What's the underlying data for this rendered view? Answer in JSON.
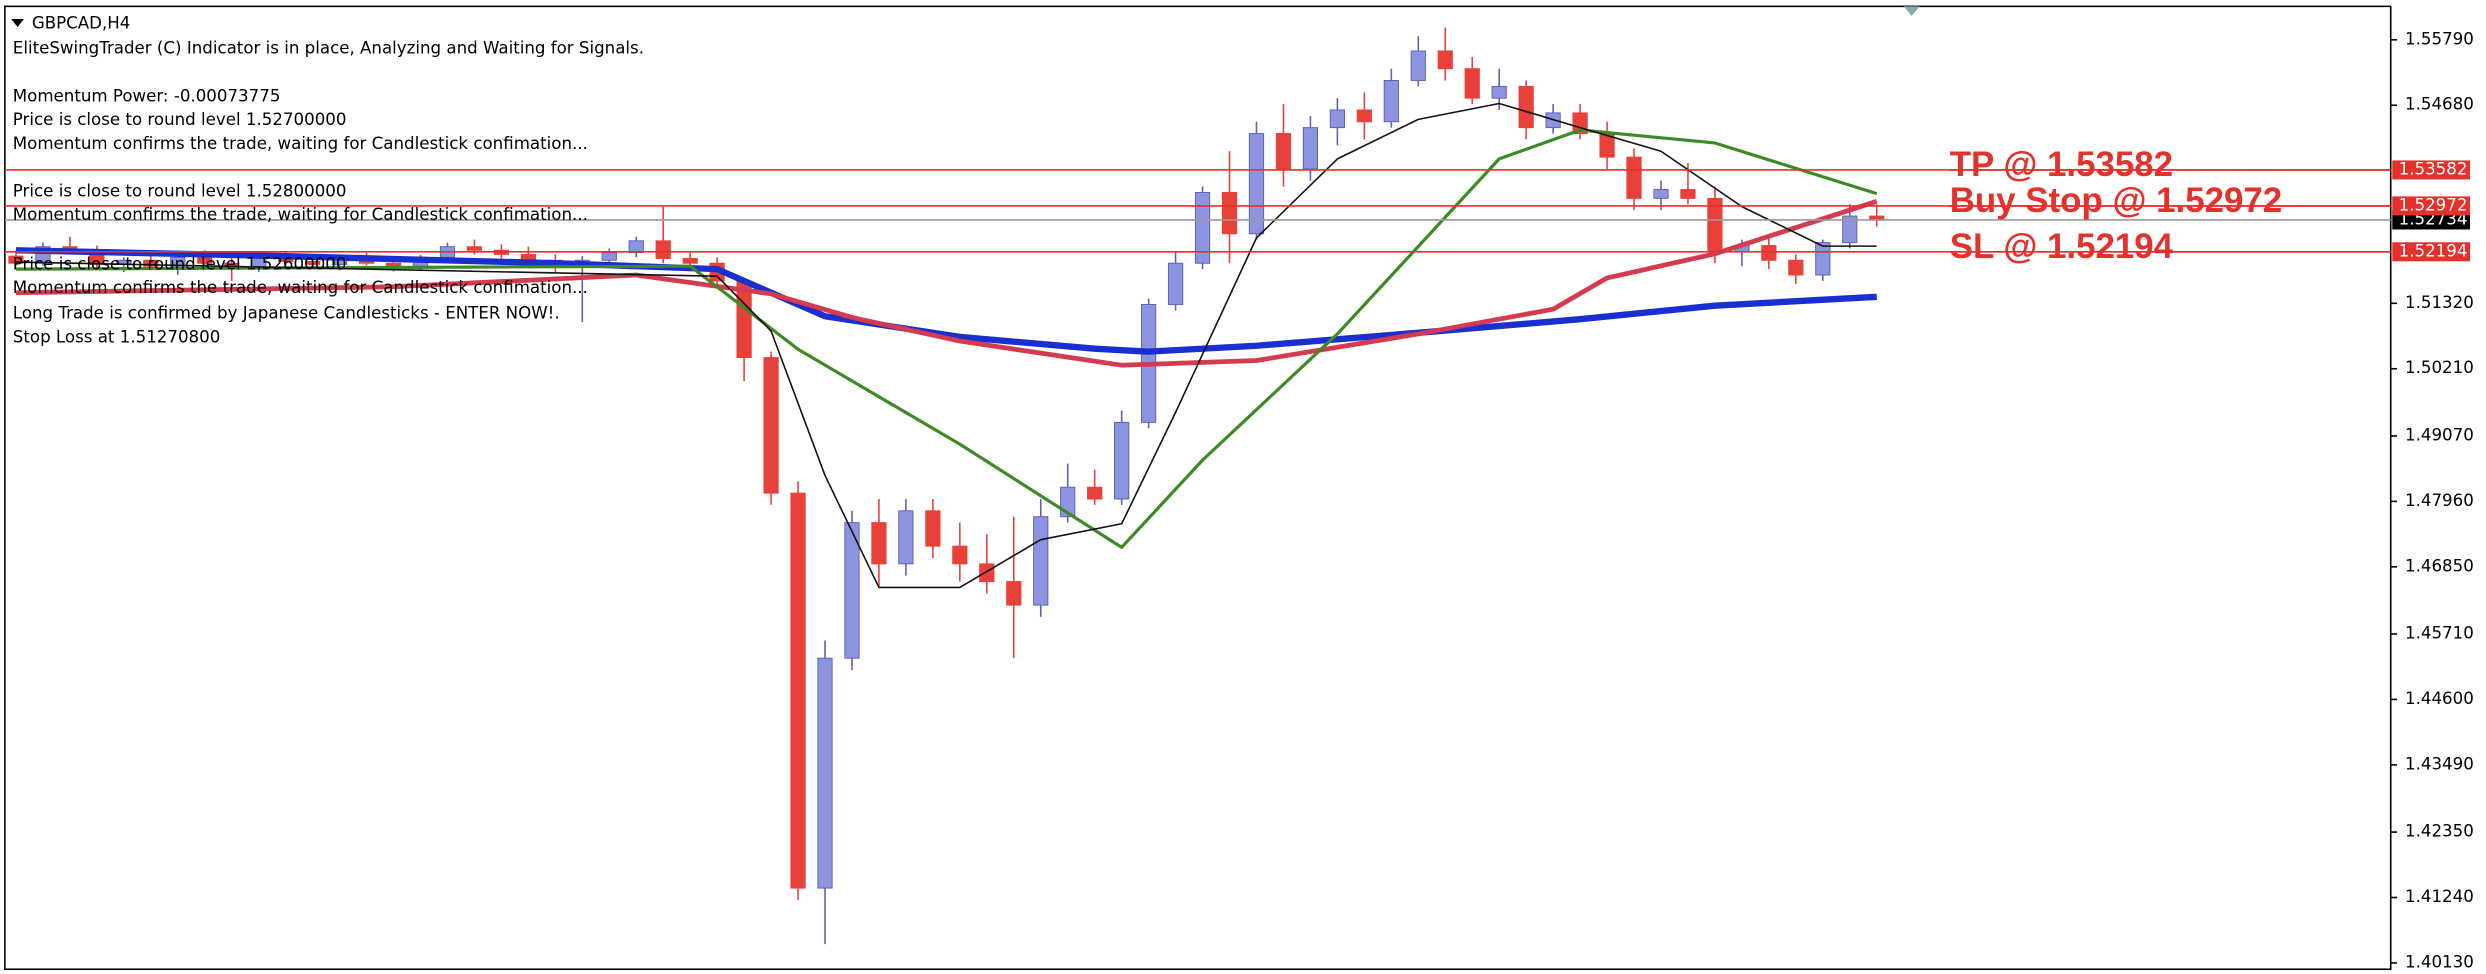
{
  "overlay": {
    "symbol": "GBPCAD,H4",
    "lines": [
      "EliteSwingTrader (C) Indicator is in place, Analyzing and Waiting for Signals.",
      "Momentum Power: -0.00073775",
      "Price is close to round level 1.52700000",
      "Momentum confirms the trade, waiting for Candlestick confimation...",
      "Price is close to round level 1.52800000",
      "Momentum confirms the trade, waiting for Candlestick confimation...",
      "Price is close to round level 1.52600000",
      "Momentum confirms the trade, waiting for Candlestick confimation...",
      "Long Trade is confirmed by Japanese Candlesticks - ENTER NOW!.",
      "Stop Loss at 1.51270800"
    ]
  },
  "chart_data": {
    "type": "candlestick",
    "bull_color": "#8c93df",
    "bear_color": "#e8413a",
    "ylim": [
      1.4005,
      1.5625
    ],
    "yticks": [
      {
        "value": 1.5579,
        "label": "1.55790"
      },
      {
        "value": 1.5468,
        "label": "1.54680"
      },
      {
        "value": 1.5132,
        "label": "1.51320"
      },
      {
        "value": 1.5021,
        "label": "1.50210"
      },
      {
        "value": 1.4907,
        "label": "1.49070"
      },
      {
        "value": 1.4796,
        "label": "1.47960"
      },
      {
        "value": 1.4685,
        "label": "1.46850"
      },
      {
        "value": 1.4571,
        "label": "1.45710"
      },
      {
        "value": 1.446,
        "label": "1.44600"
      },
      {
        "value": 1.4349,
        "label": "1.43490"
      },
      {
        "value": 1.4235,
        "label": "1.42350"
      },
      {
        "value": 1.4124,
        "label": "1.41240"
      },
      {
        "value": 1.4013,
        "label": "1.40130"
      }
    ],
    "candles": [
      [
        1.5212,
        1.5222,
        1.5195,
        1.52
      ],
      [
        1.52,
        1.5235,
        1.5195,
        1.5228
      ],
      [
        1.5228,
        1.5245,
        1.5215,
        1.522
      ],
      [
        1.522,
        1.523,
        1.519,
        1.5198
      ],
      [
        1.5198,
        1.521,
        1.5185,
        1.5205
      ],
      [
        1.5205,
        1.5218,
        1.519,
        1.5195
      ],
      [
        1.5195,
        1.5215,
        1.518,
        1.521
      ],
      [
        1.521,
        1.5222,
        1.5196,
        1.52
      ],
      [
        1.52,
        1.5212,
        1.517,
        1.519
      ],
      [
        1.519,
        1.5215,
        1.5185,
        1.5208
      ],
      [
        1.5208,
        1.522,
        1.5195,
        1.5203
      ],
      [
        1.5203,
        1.5214,
        1.5192,
        1.5198
      ],
      [
        1.5198,
        1.5212,
        1.5188,
        1.5206
      ],
      [
        1.5206,
        1.5218,
        1.5196,
        1.52
      ],
      [
        1.52,
        1.521,
        1.5186,
        1.5192
      ],
      [
        1.5192,
        1.5214,
        1.5188,
        1.521
      ],
      [
        1.521,
        1.5235,
        1.5205,
        1.5228
      ],
      [
        1.5228,
        1.524,
        1.5215,
        1.5222
      ],
      [
        1.5222,
        1.5232,
        1.5208,
        1.5215
      ],
      [
        1.5215,
        1.5228,
        1.52,
        1.5205
      ],
      [
        1.5205,
        1.5215,
        1.5185,
        1.5195
      ],
      [
        1.5195,
        1.5212,
        1.51,
        1.5205
      ],
      [
        1.5205,
        1.5225,
        1.5198,
        1.5218
      ],
      [
        1.5218,
        1.5245,
        1.521,
        1.5238
      ],
      [
        1.5238,
        1.5296,
        1.52,
        1.5208
      ],
      [
        1.5208,
        1.5218,
        1.5195,
        1.52
      ],
      [
        1.52,
        1.521,
        1.516,
        1.517
      ],
      [
        1.517,
        1.5175,
        1.5,
        1.504
      ],
      [
        1.504,
        1.505,
        1.479,
        1.481
      ],
      [
        1.481,
        1.483,
        1.412,
        1.414
      ],
      [
        1.414,
        1.456,
        1.4045,
        1.453
      ],
      [
        1.453,
        1.478,
        1.451,
        1.476
      ],
      [
        1.476,
        1.48,
        1.465,
        1.469
      ],
      [
        1.469,
        1.48,
        1.467,
        1.478
      ],
      [
        1.478,
        1.48,
        1.47,
        1.472
      ],
      [
        1.472,
        1.476,
        1.466,
        1.469
      ],
      [
        1.469,
        1.474,
        1.464,
        1.466
      ],
      [
        1.466,
        1.477,
        1.453,
        1.462
      ],
      [
        1.462,
        1.48,
        1.46,
        1.477
      ],
      [
        1.477,
        1.486,
        1.476,
        1.482
      ],
      [
        1.482,
        1.485,
        1.479,
        1.48
      ],
      [
        1.48,
        1.495,
        1.479,
        1.493
      ],
      [
        1.493,
        1.514,
        1.492,
        1.513
      ],
      [
        1.513,
        1.522,
        1.512,
        1.52
      ],
      [
        1.52,
        1.533,
        1.519,
        1.532
      ],
      [
        1.532,
        1.539,
        1.52,
        1.525
      ],
      [
        1.525,
        1.544,
        1.524,
        1.542
      ],
      [
        1.542,
        1.547,
        1.533,
        1.536
      ],
      [
        1.536,
        1.545,
        1.534,
        1.543
      ],
      [
        1.543,
        1.548,
        1.54,
        1.546
      ],
      [
        1.546,
        1.549,
        1.541,
        1.544
      ],
      [
        1.544,
        1.553,
        1.543,
        1.551
      ],
      [
        1.551,
        1.5585,
        1.55,
        1.556
      ],
      [
        1.556,
        1.56,
        1.551,
        1.553
      ],
      [
        1.553,
        1.555,
        1.547,
        1.548
      ],
      [
        1.548,
        1.553,
        1.546,
        1.55
      ],
      [
        1.55,
        1.551,
        1.541,
        1.543
      ],
      [
        1.543,
        1.547,
        1.542,
        1.5455
      ],
      [
        1.5455,
        1.547,
        1.541,
        1.542
      ],
      [
        1.542,
        1.544,
        1.536,
        1.538
      ],
      [
        1.538,
        1.5395,
        1.529,
        1.531
      ],
      [
        1.531,
        1.534,
        1.529,
        1.5325
      ],
      [
        1.5325,
        1.537,
        1.53,
        1.531
      ],
      [
        1.531,
        1.533,
        1.52,
        1.522
      ],
      [
        1.522,
        1.524,
        1.5195,
        1.523
      ],
      [
        1.523,
        1.5245,
        1.519,
        1.5205
      ],
      [
        1.5205,
        1.5215,
        1.5165,
        1.518
      ],
      [
        1.518,
        1.524,
        1.517,
        1.5235
      ],
      [
        1.5235,
        1.53,
        1.5225,
        1.528
      ],
      [
        1.528,
        1.53,
        1.5262,
        1.5273
      ]
    ],
    "series": [
      {
        "color": "#1a2fd0",
        "x": [
          0,
          10,
          20,
          26,
          30,
          35,
          40,
          42,
          46,
          52,
          58,
          63,
          69
        ],
        "values": [
          1.5222,
          1.5212,
          1.52,
          1.519,
          1.511,
          1.5075,
          1.5055,
          1.505,
          1.506,
          1.5082,
          1.5105,
          1.5128,
          1.5143
        ]
      },
      {
        "color": "#d43a50",
        "x": [
          0,
          14,
          23,
          28,
          31,
          35,
          41,
          46,
          52,
          57,
          59,
          63,
          69
        ],
        "values": [
          1.515,
          1.516,
          1.518,
          1.5148,
          1.5108,
          1.5068,
          1.5027,
          1.5035,
          1.508,
          1.5122,
          1.5175,
          1.5216,
          1.5305
        ]
      },
      {
        "color": "#3d8a24",
        "x": [
          0,
          25,
          29,
          35,
          41,
          44,
          49,
          55,
          58,
          63,
          69
        ],
        "values": [
          1.519,
          1.5195,
          1.5054,
          1.4893,
          1.4718,
          1.4866,
          1.508,
          1.5377,
          1.5426,
          1.5404,
          1.5318
        ]
      },
      {
        "color": "#111111",
        "x": [
          0,
          26,
          28,
          30,
          32,
          35,
          38,
          41,
          43,
          46,
          49,
          52,
          55,
          58,
          61,
          64,
          67,
          69
        ],
        "values": [
          1.5202,
          1.5178,
          1.5085,
          1.484,
          1.465,
          1.465,
          1.4731,
          1.4758,
          1.4947,
          1.5243,
          1.5377,
          1.5444,
          1.5471,
          1.543,
          1.539,
          1.5296,
          1.5229,
          1.5229
        ]
      }
    ],
    "current": {
      "value": 1.52734,
      "color": "#9a9a9a"
    },
    "levels": [
      {
        "text": "TP @ 1.53582",
        "value": 1.53582,
        "color": "#e4312b"
      },
      {
        "text": "Buy Stop @ 1.52972",
        "value": 1.52972,
        "color": "#e4312b"
      },
      {
        "text": "SL @ 1.52194",
        "value": 1.52194,
        "color": "#e4312b"
      }
    ]
  }
}
